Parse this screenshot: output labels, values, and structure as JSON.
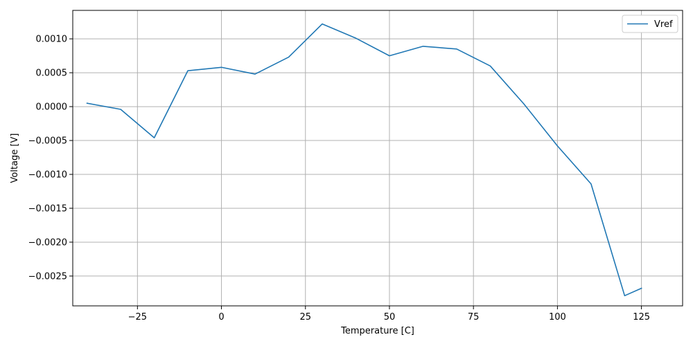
{
  "chart_data": {
    "type": "line",
    "title": "",
    "xlabel": "Temperature [C]",
    "ylabel": "Voltage [V]",
    "xlim": [
      -44.25,
      137.25
    ],
    "ylim": [
      -0.00294,
      0.00142
    ],
    "grid": true,
    "legend_position": "top-right",
    "x_ticks": [
      -25,
      0,
      25,
      50,
      75,
      100,
      125
    ],
    "x_tick_labels": [
      "−25",
      "0",
      "25",
      "50",
      "75",
      "100",
      "125"
    ],
    "y_ticks": [
      0.001,
      0.0005,
      0.0,
      -0.0005,
      -0.001,
      -0.0015,
      -0.002,
      -0.0025
    ],
    "y_tick_labels": [
      "0.0010",
      "0.0005",
      "0.0000",
      "−0.0005",
      "−0.0010",
      "−0.0015",
      "−0.0020",
      "−0.0025"
    ],
    "series": [
      {
        "name": "Vref",
        "color": "#1f77b4",
        "x": [
          -40,
          -30,
          -20,
          -10,
          0,
          10,
          20,
          30,
          40,
          50,
          60,
          70,
          80,
          90,
          100,
          110,
          120,
          125
        ],
        "y": [
          5e-05,
          -4e-05,
          -0.00046,
          0.00053,
          0.00058,
          0.00048,
          0.00073,
          0.00122,
          0.00101,
          0.00075,
          0.00089,
          0.00085,
          0.0006,
          4e-05,
          -0.00058,
          -0.00114,
          -0.00279,
          -0.00268
        ]
      }
    ]
  }
}
